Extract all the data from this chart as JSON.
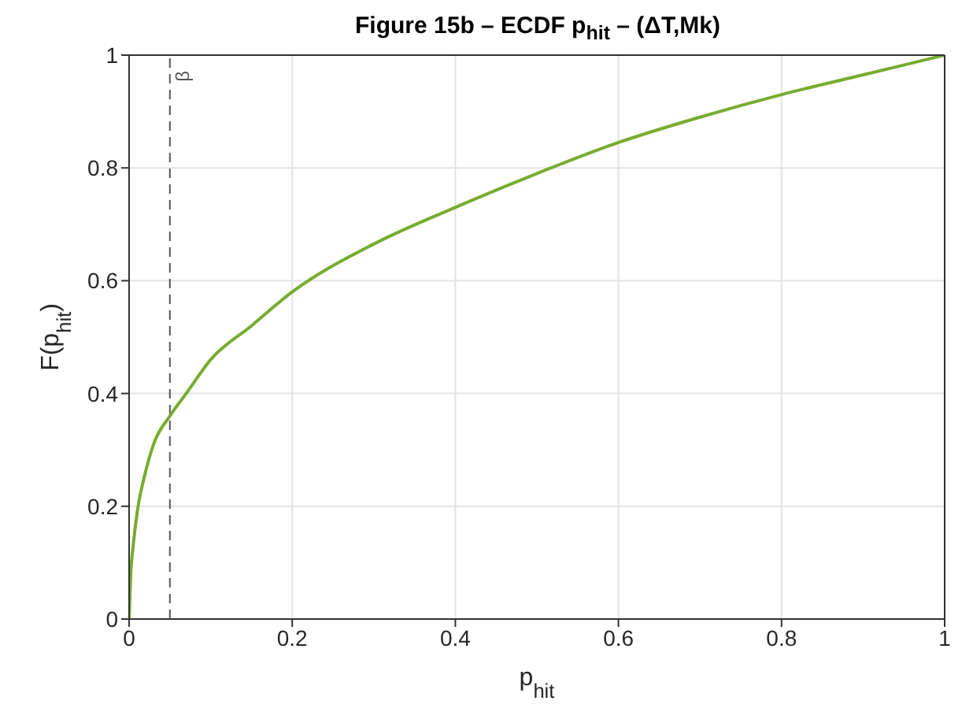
{
  "chart_data": {
    "type": "line",
    "title": "Figure 15b – ECDF p$_{hit}$ – (ΔT,Mk)",
    "xlabel": "p$_{hit}$",
    "ylabel": "F(p$_{hit}$)",
    "x": [
      0,
      0.002,
      0.005,
      0.01,
      0.02,
      0.03,
      0.05,
      0.07,
      0.1,
      0.15,
      0.2,
      0.3,
      0.4,
      0.5,
      0.6,
      0.7,
      0.8,
      0.9,
      1
    ],
    "series": [
      {
        "color": "#77ac30",
        "values": [
          0,
          0.08,
          0.13,
          0.19,
          0.26,
          0.31,
          0.36,
          0.4,
          0.46,
          0.52,
          0.58,
          0.665,
          0.73,
          0.79,
          0.845,
          0.89,
          0.93,
          0.965,
          1
        ]
      }
    ],
    "xlim": [
      0,
      1
    ],
    "ylim": [
      0,
      1
    ],
    "xticks": [
      0,
      0.2,
      0.4,
      0.6,
      0.8,
      1
    ],
    "yticks": [
      0,
      0.2,
      0.4,
      0.6,
      0.8,
      1
    ],
    "grid": true,
    "marker": "none",
    "line_style": "solid",
    "ref_lines": [
      {
        "axis": "x",
        "value": 0.05,
        "label": "β",
        "color": "#555555",
        "line_style": "dashed"
      }
    ]
  }
}
